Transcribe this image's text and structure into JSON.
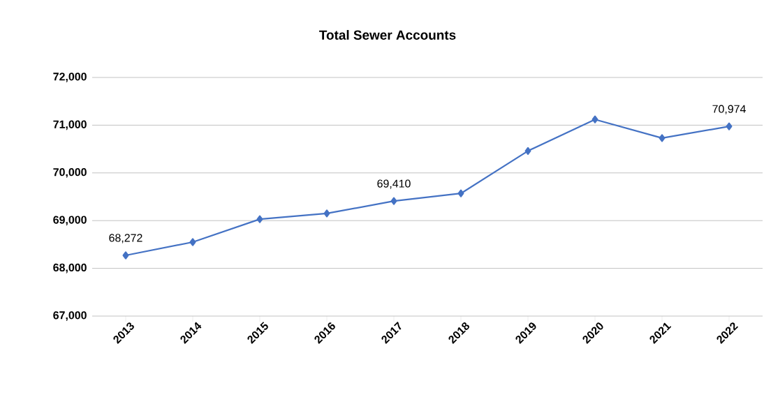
{
  "chart_data": {
    "type": "line",
    "title": "Total Sewer Accounts",
    "categories": [
      "2013",
      "2014",
      "2015",
      "2016",
      "2017",
      "2018",
      "2019",
      "2020",
      "2021",
      "2022"
    ],
    "series": [
      {
        "color": "#4472c4",
        "values": [
          68272,
          68550,
          69030,
          69150,
          69410,
          69570,
          70460,
          71120,
          70730,
          70974
        ],
        "value_labels": [
          "68,272",
          null,
          null,
          null,
          "69,410",
          null,
          null,
          null,
          null,
          "70,974"
        ]
      }
    ],
    "ylim": [
      67000,
      72000
    ],
    "yticks": [
      {
        "value": 67000,
        "label": "67,000"
      },
      {
        "value": 68000,
        "label": "68,000"
      },
      {
        "value": 69000,
        "label": "69,000"
      },
      {
        "value": 70000,
        "label": "70,000"
      },
      {
        "value": 71000,
        "label": "71,000"
      },
      {
        "value": 72000,
        "label": "72,000"
      }
    ],
    "grid": "y",
    "marker": "diamond",
    "line_style": "solid",
    "legend": false
  }
}
